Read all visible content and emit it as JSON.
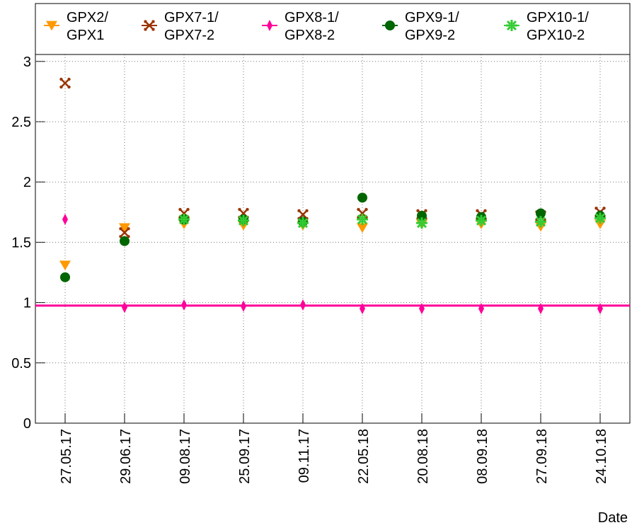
{
  "chart_data": {
    "type": "scatter",
    "x_label": "Date",
    "categories": [
      "27.05.17",
      "29.06.17",
      "09.08.17",
      "25.09.17",
      "09.11.17",
      "22.05.18",
      "20.08.18",
      "08.09.18",
      "27.09.18",
      "24.10.18"
    ],
    "ylim": [
      0,
      3.48
    ],
    "yticks": [
      0,
      0.5,
      1,
      1.5,
      2,
      2.5,
      3
    ],
    "grid": true,
    "legend": "top",
    "series": [
      {
        "name": "GPX2/\nGPX1",
        "color": "#ff9900",
        "marker": "triangle-down",
        "values": [
          1.31,
          1.62,
          1.65,
          1.64,
          1.64,
          1.62,
          1.65,
          1.65,
          1.63,
          1.65
        ]
      },
      {
        "name": "GPX7-1/\nGPX7-2",
        "color": "#993300",
        "marker": "cross",
        "values": [
          2.82,
          1.58,
          1.74,
          1.74,
          1.73,
          1.74,
          1.73,
          1.73,
          1.72,
          1.75
        ]
      },
      {
        "name": "GPX8-1/\nGPX8-2",
        "color": "#ff0099",
        "marker": "diamond",
        "values": [
          1.69,
          0.96,
          0.98,
          0.97,
          0.98,
          0.95,
          0.95,
          0.95,
          0.95,
          0.95
        ],
        "line_value": 0.975
      },
      {
        "name": "GPX9-1/\nGPX9-2",
        "color": "#006600",
        "marker": "circle",
        "values": [
          1.21,
          1.51,
          1.69,
          1.69,
          1.67,
          1.87,
          1.72,
          1.71,
          1.74,
          1.72
        ]
      },
      {
        "name": "GPX10-1/\nGPX10-2",
        "color": "#33cc33",
        "marker": "star",
        "values": [
          null,
          null,
          1.69,
          1.68,
          1.66,
          1.69,
          1.66,
          1.68,
          1.67,
          1.7
        ]
      }
    ]
  }
}
